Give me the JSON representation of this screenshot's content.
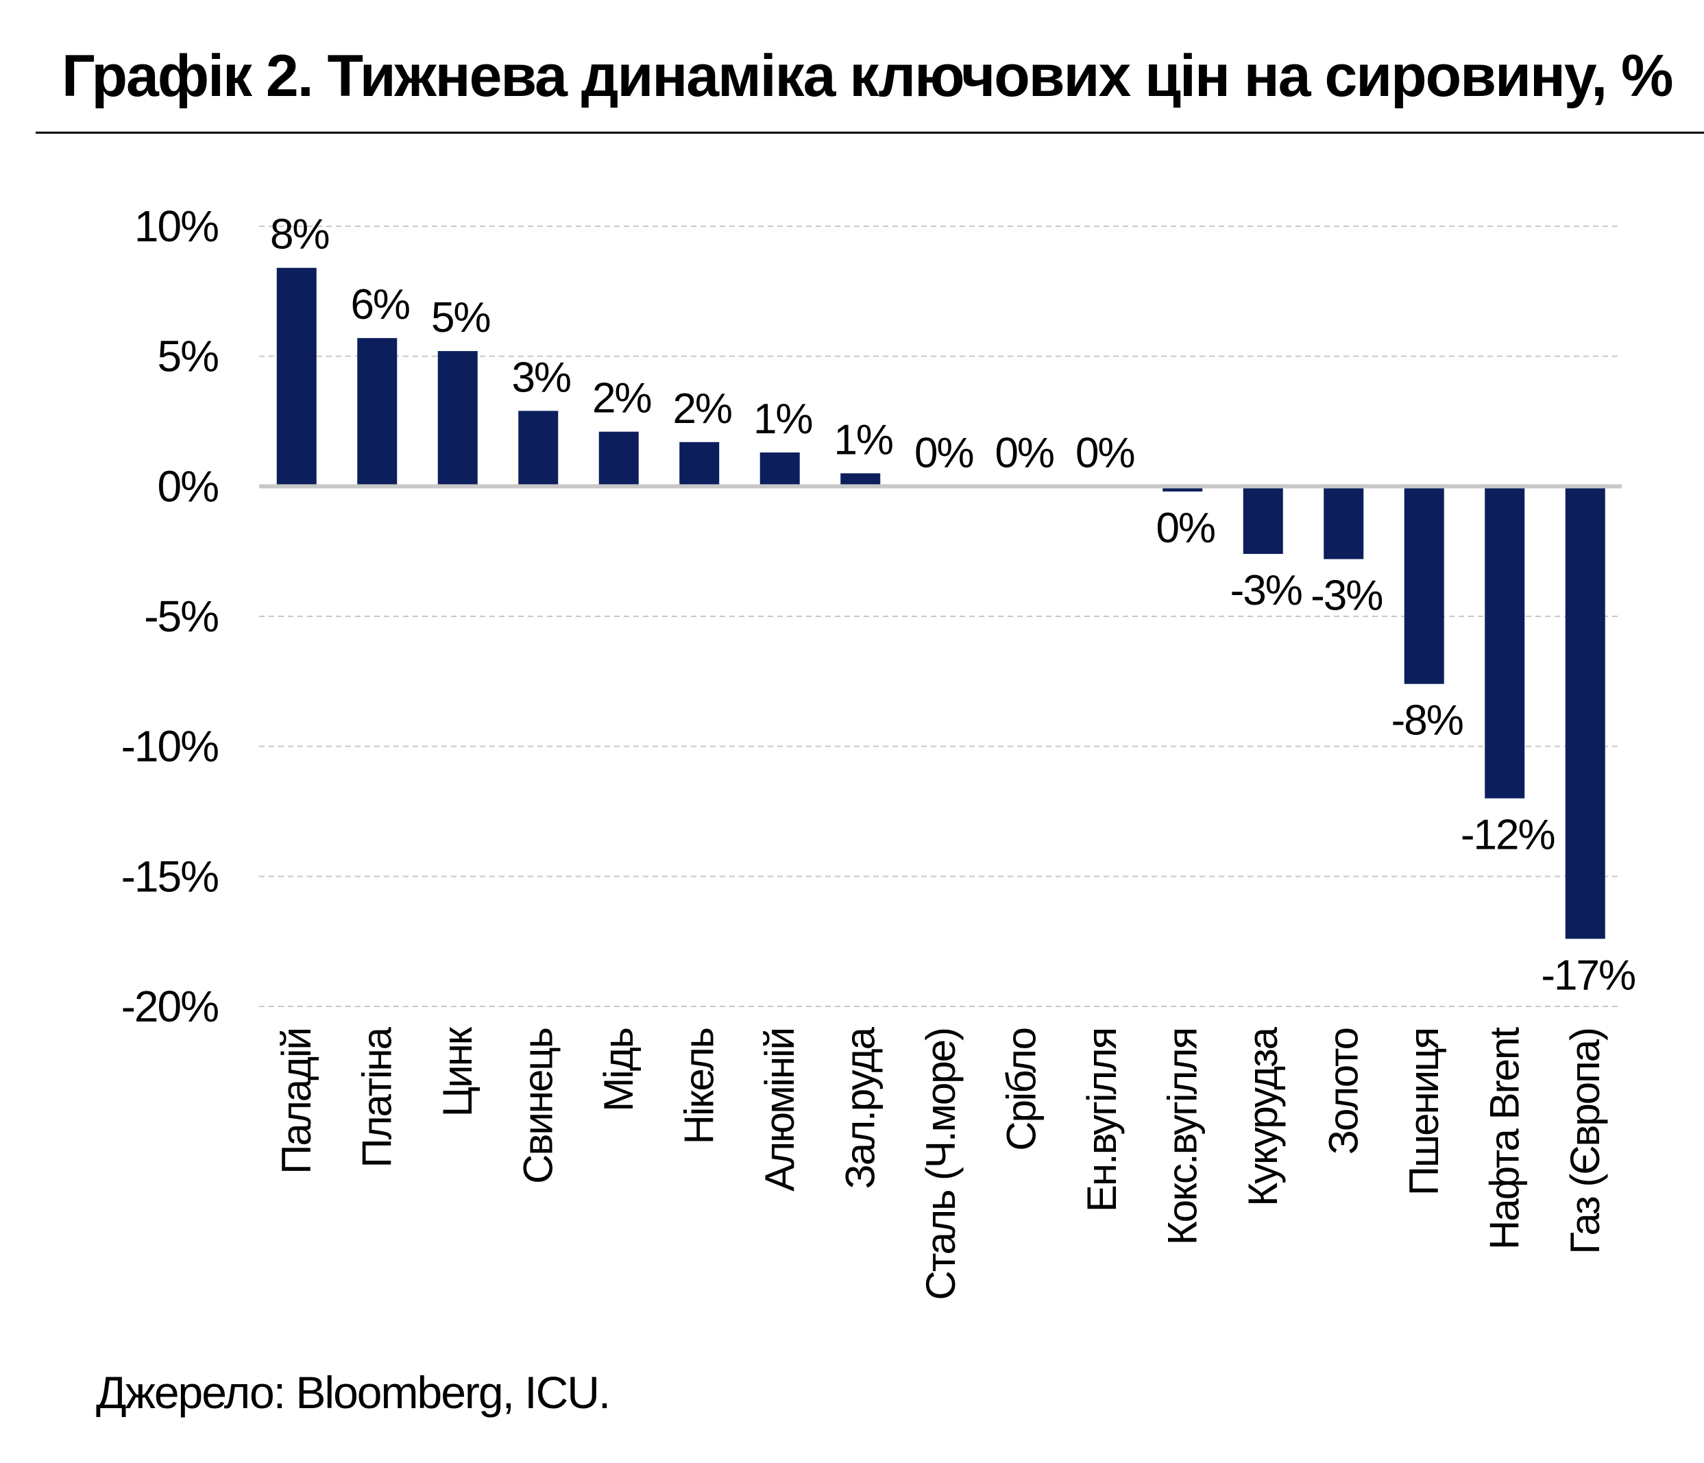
{
  "title": "Графік 2. Тижнева динаміка ключових цін на сировину, %",
  "source": "Джерело: Bloomberg, ICU.",
  "colors": {
    "bar": "#0c1f5c",
    "grid": "#c8c8c8",
    "axis": "#c8c8c8",
    "text": "#000000"
  },
  "chart_data": {
    "type": "bar",
    "title": "Графік 2. Тижнева динаміка ключових цін на сировину, %",
    "categories": [
      "Паладій",
      "Платіна",
      "Цинк",
      "Свинець",
      "Мідь",
      "Нікель",
      "Алюміній",
      "Зал.руда",
      "Сталь (Ч.море)",
      "Срібло",
      "Ен.вугілля",
      "Кокс.вугілля",
      "Кукурудза",
      "Золото",
      "Пшениця",
      "Нафта Brent",
      "Газ (Європа)"
    ],
    "values": [
      8.4,
      5.7,
      5.2,
      2.9,
      2.1,
      1.7,
      1.3,
      0.5,
      0.0,
      0.0,
      0.0,
      -0.2,
      -2.6,
      -2.8,
      -7.6,
      -12.0,
      -17.4
    ],
    "data_labels": [
      "8%",
      "6%",
      "5%",
      "3%",
      "2%",
      "2%",
      "1%",
      "1%",
      "0%",
      "0%",
      "0%",
      "0%",
      "-3%",
      "-3%",
      "-8%",
      "-12%",
      "-17%"
    ],
    "xlabel": "",
    "ylabel": "",
    "ylim": [
      -20,
      10
    ],
    "yticks": [
      10,
      5,
      0,
      -5,
      -10,
      -15,
      -20
    ],
    "ytick_labels": [
      "10%",
      "5%",
      "0%",
      "-5%",
      "-10%",
      "-15%",
      "-20%"
    ],
    "grid": true,
    "legend": "none"
  }
}
